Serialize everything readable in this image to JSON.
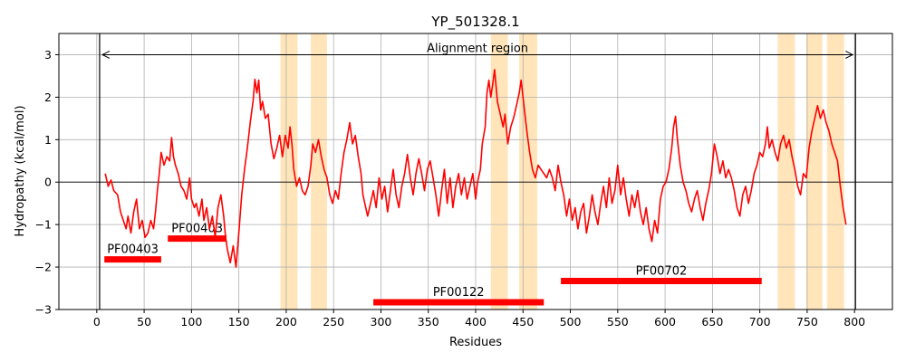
{
  "chart_data": {
    "type": "line",
    "title": "YP_501328.1",
    "xlabel": "Residues",
    "ylabel": "Hydropathy (kcal/mol)",
    "xlim": [
      -40,
      840
    ],
    "ylim": [
      -3,
      3.5
    ],
    "xticks": [
      0,
      50,
      100,
      150,
      200,
      250,
      300,
      350,
      400,
      450,
      500,
      550,
      600,
      650,
      700,
      750,
      800
    ],
    "yticks": [
      -3,
      -2,
      -1,
      0,
      1,
      2,
      3
    ],
    "grid": true,
    "line_color": "#ff0000",
    "highlight_color": "#ffe4b5",
    "domain_color": "#ff0000",
    "alignment_region": {
      "label": "Alignment region",
      "start": 3,
      "end": 801
    },
    "highlight_regions": [
      [
        194,
        212
      ],
      [
        226,
        243
      ],
      [
        416,
        434
      ],
      [
        446,
        465
      ],
      [
        719,
        737
      ],
      [
        749,
        766
      ],
      [
        771,
        789
      ]
    ],
    "domains": [
      {
        "name": "PF00403",
        "start": 8,
        "end": 68,
        "y": -1.82
      },
      {
        "name": "PF00403",
        "start": 75,
        "end": 137,
        "y": -1.33
      },
      {
        "name": "PF00122",
        "start": 292,
        "end": 472,
        "y": -2.83
      },
      {
        "name": "PF00702",
        "start": 490,
        "end": 702,
        "y": -2.33
      }
    ],
    "series": [
      {
        "points": [
          [
            9,
            0.2
          ],
          [
            12,
            -0.1
          ],
          [
            15,
            0.05
          ],
          [
            18,
            -0.2
          ],
          [
            22,
            -0.3
          ],
          [
            25,
            -0.7
          ],
          [
            28,
            -0.9
          ],
          [
            31,
            -1.1
          ],
          [
            33,
            -0.8
          ],
          [
            36,
            -1.2
          ],
          [
            39,
            -0.7
          ],
          [
            42,
            -0.4
          ],
          [
            45,
            -1.1
          ],
          [
            48,
            -0.9
          ],
          [
            51,
            -1.3
          ],
          [
            54,
            -1.2
          ],
          [
            57,
            -0.9
          ],
          [
            60,
            -1.1
          ],
          [
            62,
            -0.7
          ],
          [
            64,
            -0.2
          ],
          [
            66,
            0.2
          ],
          [
            68,
            0.7
          ],
          [
            71,
            0.4
          ],
          [
            74,
            0.6
          ],
          [
            77,
            0.5
          ],
          [
            79,
            1.05
          ],
          [
            81,
            0.6
          ],
          [
            83,
            0.4
          ],
          [
            86,
            0.2
          ],
          [
            89,
            -0.1
          ],
          [
            92,
            -0.2
          ],
          [
            95,
            -0.4
          ],
          [
            98,
            0.1
          ],
          [
            100,
            -0.4
          ],
          [
            103,
            -0.6
          ],
          [
            105,
            -0.5
          ],
          [
            108,
            -0.8
          ],
          [
            111,
            -0.4
          ],
          [
            113,
            -0.9
          ],
          [
            116,
            -0.6
          ],
          [
            119,
            -1.1
          ],
          [
            122,
            -0.8
          ],
          [
            125,
            -1.3
          ],
          [
            128,
            -0.6
          ],
          [
            131,
            -0.3
          ],
          [
            134,
            -0.8
          ],
          [
            136,
            -1.3
          ],
          [
            138,
            -1.6
          ],
          [
            141,
            -1.9
          ],
          [
            144,
            -1.5
          ],
          [
            147,
            -2.0
          ],
          [
            150,
            -1.2
          ],
          [
            153,
            -0.3
          ],
          [
            156,
            0.3
          ],
          [
            159,
            0.8
          ],
          [
            162,
            1.4
          ],
          [
            165,
            1.9
          ],
          [
            167,
            2.42
          ],
          [
            169,
            2.1
          ],
          [
            171,
            2.4
          ],
          [
            173,
            1.7
          ],
          [
            175,
            1.9
          ],
          [
            178,
            1.5
          ],
          [
            181,
            1.6
          ],
          [
            184,
            0.9
          ],
          [
            187,
            0.55
          ],
          [
            190,
            0.8
          ],
          [
            193,
            1.1
          ],
          [
            196,
            0.6
          ],
          [
            199,
            1.1
          ],
          [
            202,
            0.8
          ],
          [
            204,
            1.3
          ],
          [
            206,
            0.9
          ],
          [
            208,
            0.3
          ],
          [
            211,
            -0.1
          ],
          [
            214,
            0.1
          ],
          [
            217,
            -0.2
          ],
          [
            220,
            -0.3
          ],
          [
            223,
            -0.1
          ],
          [
            226,
            0.4
          ],
          [
            228,
            0.9
          ],
          [
            231,
            0.7
          ],
          [
            234,
            1.0
          ],
          [
            237,
            0.6
          ],
          [
            240,
            0.3
          ],
          [
            243,
            0.1
          ],
          [
            246,
            -0.3
          ],
          [
            249,
            -0.5
          ],
          [
            252,
            -0.2
          ],
          [
            255,
            -0.4
          ],
          [
            258,
            0.2
          ],
          [
            261,
            0.7
          ],
          [
            264,
            1.0
          ],
          [
            267,
            1.4
          ],
          [
            270,
            0.9
          ],
          [
            273,
            1.1
          ],
          [
            276,
            0.6
          ],
          [
            279,
            0.2
          ],
          [
            281,
            -0.3
          ],
          [
            284,
            -0.6
          ],
          [
            286,
            -0.8
          ],
          [
            289,
            -0.5
          ],
          [
            292,
            -0.2
          ],
          [
            295,
            -0.6
          ],
          [
            298,
            0.1
          ],
          [
            301,
            -0.4
          ],
          [
            304,
            -0.1
          ],
          [
            307,
            -0.7
          ],
          [
            310,
            -0.2
          ],
          [
            313,
            0.3
          ],
          [
            316,
            -0.3
          ],
          [
            319,
            -0.6
          ],
          [
            322,
            -0.1
          ],
          [
            325,
            0.2
          ],
          [
            328,
            0.65
          ],
          [
            331,
            0.1
          ],
          [
            334,
            -0.3
          ],
          [
            337,
            0.2
          ],
          [
            340,
            0.55
          ],
          [
            343,
            0.2
          ],
          [
            346,
            -0.2
          ],
          [
            349,
            0.3
          ],
          [
            352,
            0.5
          ],
          [
            355,
            0.1
          ],
          [
            358,
            -0.3
          ],
          [
            361,
            -0.8
          ],
          [
            364,
            -0.2
          ],
          [
            367,
            0.3
          ],
          [
            370,
            -0.5
          ],
          [
            373,
            0.1
          ],
          [
            376,
            -0.6
          ],
          [
            379,
            -0.1
          ],
          [
            382,
            0.2
          ],
          [
            385,
            -0.3
          ],
          [
            388,
            0.1
          ],
          [
            391,
            -0.4
          ],
          [
            394,
            -0.1
          ],
          [
            397,
            0.2
          ],
          [
            400,
            -0.4
          ],
          [
            402,
            0.0
          ],
          [
            405,
            0.3
          ],
          [
            407,
            0.9
          ],
          [
            410,
            1.3
          ],
          [
            412,
            2.1
          ],
          [
            414,
            2.4
          ],
          [
            416,
            2.0
          ],
          [
            418,
            2.3
          ],
          [
            420,
            2.65
          ],
          [
            423,
            1.9
          ],
          [
            426,
            1.6
          ],
          [
            429,
            1.3
          ],
          [
            431,
            1.6
          ],
          [
            434,
            0.9
          ],
          [
            437,
            1.3
          ],
          [
            440,
            1.5
          ],
          [
            443,
            1.8
          ],
          [
            446,
            2.1
          ],
          [
            448,
            2.4
          ],
          [
            451,
            1.8
          ],
          [
            454,
            1.2
          ],
          [
            457,
            0.7
          ],
          [
            460,
            0.3
          ],
          [
            463,
            0.1
          ],
          [
            466,
            0.4
          ],
          [
            469,
            0.3
          ],
          [
            472,
            0.2
          ],
          [
            475,
            0.1
          ],
          [
            478,
            0.3
          ],
          [
            481,
            0.1
          ],
          [
            484,
            -0.2
          ],
          [
            487,
            0.4
          ],
          [
            490,
            0.0
          ],
          [
            493,
            -0.3
          ],
          [
            496,
            -0.8
          ],
          [
            499,
            -0.4
          ],
          [
            502,
            -0.9
          ],
          [
            505,
            -0.6
          ],
          [
            508,
            -1.1
          ],
          [
            511,
            -0.7
          ],
          [
            514,
            -0.5
          ],
          [
            517,
            -1.2
          ],
          [
            520,
            -0.8
          ],
          [
            523,
            -0.3
          ],
          [
            526,
            -0.7
          ],
          [
            529,
            -1.0
          ],
          [
            532,
            -0.5
          ],
          [
            535,
            -0.1
          ],
          [
            538,
            -0.6
          ],
          [
            541,
            0.1
          ],
          [
            544,
            -0.5
          ],
          [
            547,
            -0.2
          ],
          [
            550,
            0.4
          ],
          [
            553,
            -0.3
          ],
          [
            556,
            0.1
          ],
          [
            559,
            -0.4
          ],
          [
            562,
            -0.8
          ],
          [
            565,
            -0.3
          ],
          [
            568,
            -0.6
          ],
          [
            571,
            -0.2
          ],
          [
            574,
            -0.7
          ],
          [
            577,
            -1.0
          ],
          [
            580,
            -0.6
          ],
          [
            583,
            -1.1
          ],
          [
            586,
            -1.4
          ],
          [
            589,
            -0.9
          ],
          [
            592,
            -1.2
          ],
          [
            595,
            -0.4
          ],
          [
            598,
            -0.1
          ],
          [
            601,
            0.0
          ],
          [
            604,
            0.3
          ],
          [
            607,
            0.8
          ],
          [
            609,
            1.3
          ],
          [
            611,
            1.55
          ],
          [
            613,
            1.0
          ],
          [
            616,
            0.4
          ],
          [
            619,
            0.0
          ],
          [
            622,
            -0.2
          ],
          [
            625,
            -0.5
          ],
          [
            628,
            -0.7
          ],
          [
            631,
            -0.4
          ],
          [
            634,
            -0.2
          ],
          [
            637,
            -0.6
          ],
          [
            640,
            -0.9
          ],
          [
            643,
            -0.5
          ],
          [
            646,
            -0.2
          ],
          [
            649,
            0.2
          ],
          [
            652,
            0.9
          ],
          [
            655,
            0.6
          ],
          [
            658,
            0.2
          ],
          [
            661,
            0.5
          ],
          [
            664,
            0.1
          ],
          [
            667,
            0.3
          ],
          [
            670,
            0.1
          ],
          [
            673,
            -0.2
          ],
          [
            676,
            -0.6
          ],
          [
            679,
            -0.8
          ],
          [
            682,
            -0.3
          ],
          [
            685,
            -0.1
          ],
          [
            688,
            -0.5
          ],
          [
            691,
            -0.2
          ],
          [
            694,
            0.2
          ],
          [
            697,
            0.4
          ],
          [
            700,
            0.7
          ],
          [
            703,
            0.6
          ],
          [
            706,
            0.9
          ],
          [
            708,
            1.3
          ],
          [
            710,
            0.8
          ],
          [
            713,
            1.0
          ],
          [
            716,
            0.7
          ],
          [
            719,
            0.5
          ],
          [
            722,
            0.9
          ],
          [
            725,
            1.1
          ],
          [
            728,
            0.8
          ],
          [
            731,
            1.0
          ],
          [
            734,
            0.6
          ],
          [
            737,
            0.3
          ],
          [
            740,
            -0.1
          ],
          [
            743,
            -0.3
          ],
          [
            746,
            0.2
          ],
          [
            749,
            0.1
          ],
          [
            752,
            0.8
          ],
          [
            755,
            1.2
          ],
          [
            758,
            1.5
          ],
          [
            761,
            1.8
          ],
          [
            764,
            1.5
          ],
          [
            767,
            1.7
          ],
          [
            770,
            1.4
          ],
          [
            773,
            1.2
          ],
          [
            776,
            0.9
          ],
          [
            779,
            0.7
          ],
          [
            782,
            0.5
          ],
          [
            785,
            -0.1
          ],
          [
            788,
            -0.6
          ],
          [
            791,
            -1.0
          ]
        ]
      }
    ]
  }
}
